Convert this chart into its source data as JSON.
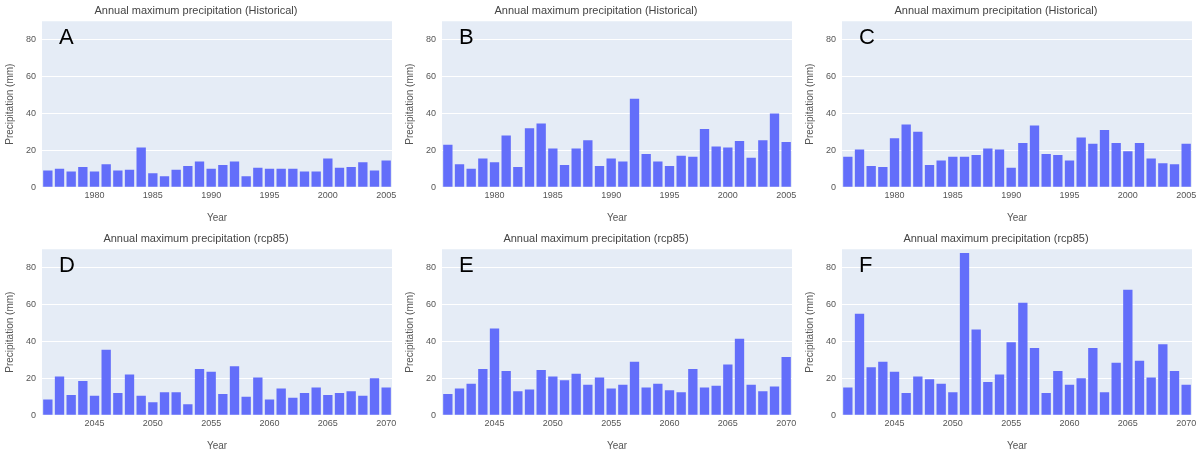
{
  "chart_data": [
    {
      "type": "bar",
      "title": "Annual maximum precipitation (Historical)",
      "xlabel": "Year",
      "ylabel": "Precipitation (mm)",
      "annotations": [
        "A"
      ],
      "color": "#636efa",
      "grid": "y",
      "xlim": [
        1975.5,
        2005.5
      ],
      "xticks": [
        1980,
        1985,
        1990,
        1995,
        2000,
        2005
      ],
      "ylim": [
        0,
        90
      ],
      "yticks": [
        0,
        20,
        40,
        60,
        80
      ],
      "x": [
        1976,
        1977,
        1978,
        1979,
        1980,
        1981,
        1982,
        1983,
        1984,
        1985,
        1986,
        1987,
        1988,
        1989,
        1990,
        1991,
        1992,
        1993,
        1994,
        1995,
        1996,
        1997,
        1998,
        1999,
        2000,
        2001,
        2002,
        2003,
        2004,
        2005
      ],
      "values": [
        9,
        10,
        8.5,
        11,
        8.5,
        12.5,
        9,
        9.5,
        21.5,
        7.5,
        6,
        9.5,
        11.5,
        14,
        10,
        12,
        14,
        6,
        10.5,
        10,
        10,
        10,
        8.5,
        8.5,
        15.5,
        10.5,
        11,
        13.5,
        9,
        14.5
      ]
    },
    {
      "type": "bar",
      "title": "Annual maximum precipitation (Historical)",
      "xlabel": "Year",
      "ylabel": "Precipitation (mm)",
      "annotations": [
        "B"
      ],
      "color": "#636efa",
      "grid": "y",
      "xlim": [
        1975.5,
        2005.5
      ],
      "xticks": [
        1980,
        1985,
        1990,
        1995,
        2000,
        2005
      ],
      "ylim": [
        0,
        90
      ],
      "yticks": [
        0,
        20,
        40,
        60,
        80
      ],
      "x": [
        1976,
        1977,
        1978,
        1979,
        1980,
        1981,
        1982,
        1983,
        1984,
        1985,
        1986,
        1987,
        1988,
        1989,
        1990,
        1991,
        1992,
        1993,
        1994,
        1995,
        1996,
        1997,
        1998,
        1999,
        2000,
        2001,
        2002,
        2003,
        2004,
        2005
      ],
      "values": [
        23,
        12.5,
        10,
        15.5,
        13.5,
        28,
        11,
        32,
        34.5,
        21,
        12,
        21,
        25.5,
        11.5,
        15.5,
        14,
        48,
        18,
        14,
        11.5,
        17,
        16.5,
        31.5,
        22,
        21.5,
        25,
        16,
        25.5,
        40,
        24.5
      ]
    },
    {
      "type": "bar",
      "title": "Annual maximum precipitation (Historical)",
      "xlabel": "Year",
      "ylabel": "Precipitation (mm)",
      "annotations": [
        "C"
      ],
      "color": "#636efa",
      "grid": "y",
      "xlim": [
        1975.5,
        2005.5
      ],
      "xticks": [
        1980,
        1985,
        1990,
        1995,
        2000,
        2005
      ],
      "ylim": [
        0,
        90
      ],
      "yticks": [
        0,
        20,
        40,
        60,
        80
      ],
      "x": [
        1976,
        1977,
        1978,
        1979,
        1980,
        1981,
        1982,
        1983,
        1984,
        1985,
        1986,
        1987,
        1988,
        1989,
        1990,
        1991,
        1992,
        1993,
        1994,
        1995,
        1996,
        1997,
        1998,
        1999,
        2000,
        2001,
        2002,
        2003,
        2004,
        2005
      ],
      "values": [
        16.5,
        20.5,
        11.5,
        11,
        26.5,
        34,
        30,
        12,
        14.5,
        16.5,
        16.5,
        17.5,
        21,
        20.5,
        10.5,
        24,
        33.5,
        18,
        17.5,
        14.5,
        27,
        23.5,
        31,
        24,
        19.5,
        24,
        15.5,
        13,
        12.5,
        23.5
      ]
    },
    {
      "type": "bar",
      "title": "Annual maximum precipitation (rcp85)",
      "xlabel": "Year",
      "ylabel": "Precipitation (mm)",
      "annotations": [
        "D"
      ],
      "color": "#636efa",
      "grid": "y",
      "xlim": [
        2040.5,
        2070.5
      ],
      "xticks": [
        2045,
        2050,
        2055,
        2060,
        2065,
        2070
      ],
      "ylim": [
        0,
        90
      ],
      "yticks": [
        0,
        20,
        40,
        60,
        80
      ],
      "x": [
        2041,
        2042,
        2043,
        2044,
        2045,
        2046,
        2047,
        2048,
        2049,
        2050,
        2051,
        2052,
        2053,
        2054,
        2055,
        2056,
        2057,
        2058,
        2059,
        2060,
        2061,
        2062,
        2063,
        2064,
        2065,
        2066,
        2067,
        2068,
        2069,
        2070
      ],
      "values": [
        8.5,
        21,
        11,
        18.5,
        10.5,
        35.5,
        12,
        22,
        10.5,
        7,
        12.5,
        12.5,
        6,
        25,
        23.5,
        11.5,
        26.5,
        10,
        20.5,
        8.5,
        14.5,
        9.5,
        12,
        15,
        11,
        12,
        13,
        10.5,
        20,
        15
      ]
    },
    {
      "type": "bar",
      "title": "Annual maximum precipitation (rcp85)",
      "xlabel": "Year",
      "ylabel": "Precipitation (mm)",
      "annotations": [
        "E"
      ],
      "color": "#636efa",
      "grid": "y",
      "xlim": [
        2040.5,
        2070.5
      ],
      "xticks": [
        2045,
        2050,
        2055,
        2060,
        2065,
        2070
      ],
      "ylim": [
        0,
        90
      ],
      "yticks": [
        0,
        20,
        40,
        60,
        80
      ],
      "x": [
        2041,
        2042,
        2043,
        2044,
        2045,
        2046,
        2047,
        2048,
        2049,
        2050,
        2051,
        2052,
        2053,
        2054,
        2055,
        2056,
        2057,
        2058,
        2059,
        2060,
        2061,
        2062,
        2063,
        2064,
        2065,
        2066,
        2067,
        2068,
        2069,
        2070
      ],
      "values": [
        11.5,
        14.5,
        17,
        25,
        47,
        24,
        13,
        14,
        24.5,
        21,
        19,
        22.5,
        16.5,
        20.5,
        14.5,
        16.5,
        29,
        15,
        17,
        13.5,
        12.5,
        25,
        15,
        16,
        27.5,
        41.5,
        16.5,
        13,
        15.5,
        31.5
      ]
    },
    {
      "type": "bar",
      "title": "Annual maximum precipitation (rcp85)",
      "xlabel": "Year",
      "ylabel": "Precipitation (mm)",
      "annotations": [
        "F"
      ],
      "color": "#636efa",
      "grid": "y",
      "xlim": [
        2040.5,
        2070.5
      ],
      "xticks": [
        2045,
        2050,
        2055,
        2060,
        2065,
        2070
      ],
      "ylim": [
        0,
        90
      ],
      "yticks": [
        0,
        20,
        40,
        60,
        80
      ],
      "x": [
        2041,
        2042,
        2043,
        2044,
        2045,
        2046,
        2047,
        2048,
        2049,
        2050,
        2051,
        2052,
        2053,
        2054,
        2055,
        2056,
        2057,
        2058,
        2059,
        2060,
        2061,
        2062,
        2063,
        2064,
        2065,
        2066,
        2067,
        2068,
        2069,
        2070
      ],
      "values": [
        15,
        55,
        26,
        29,
        23.5,
        12,
        21,
        19.5,
        17,
        12.5,
        88,
        46.5,
        18,
        22,
        39.5,
        61,
        36.5,
        12,
        24,
        16.5,
        20,
        36.5,
        12.5,
        28.5,
        68,
        29.5,
        20.5,
        38.5,
        24,
        16.5
      ]
    }
  ]
}
